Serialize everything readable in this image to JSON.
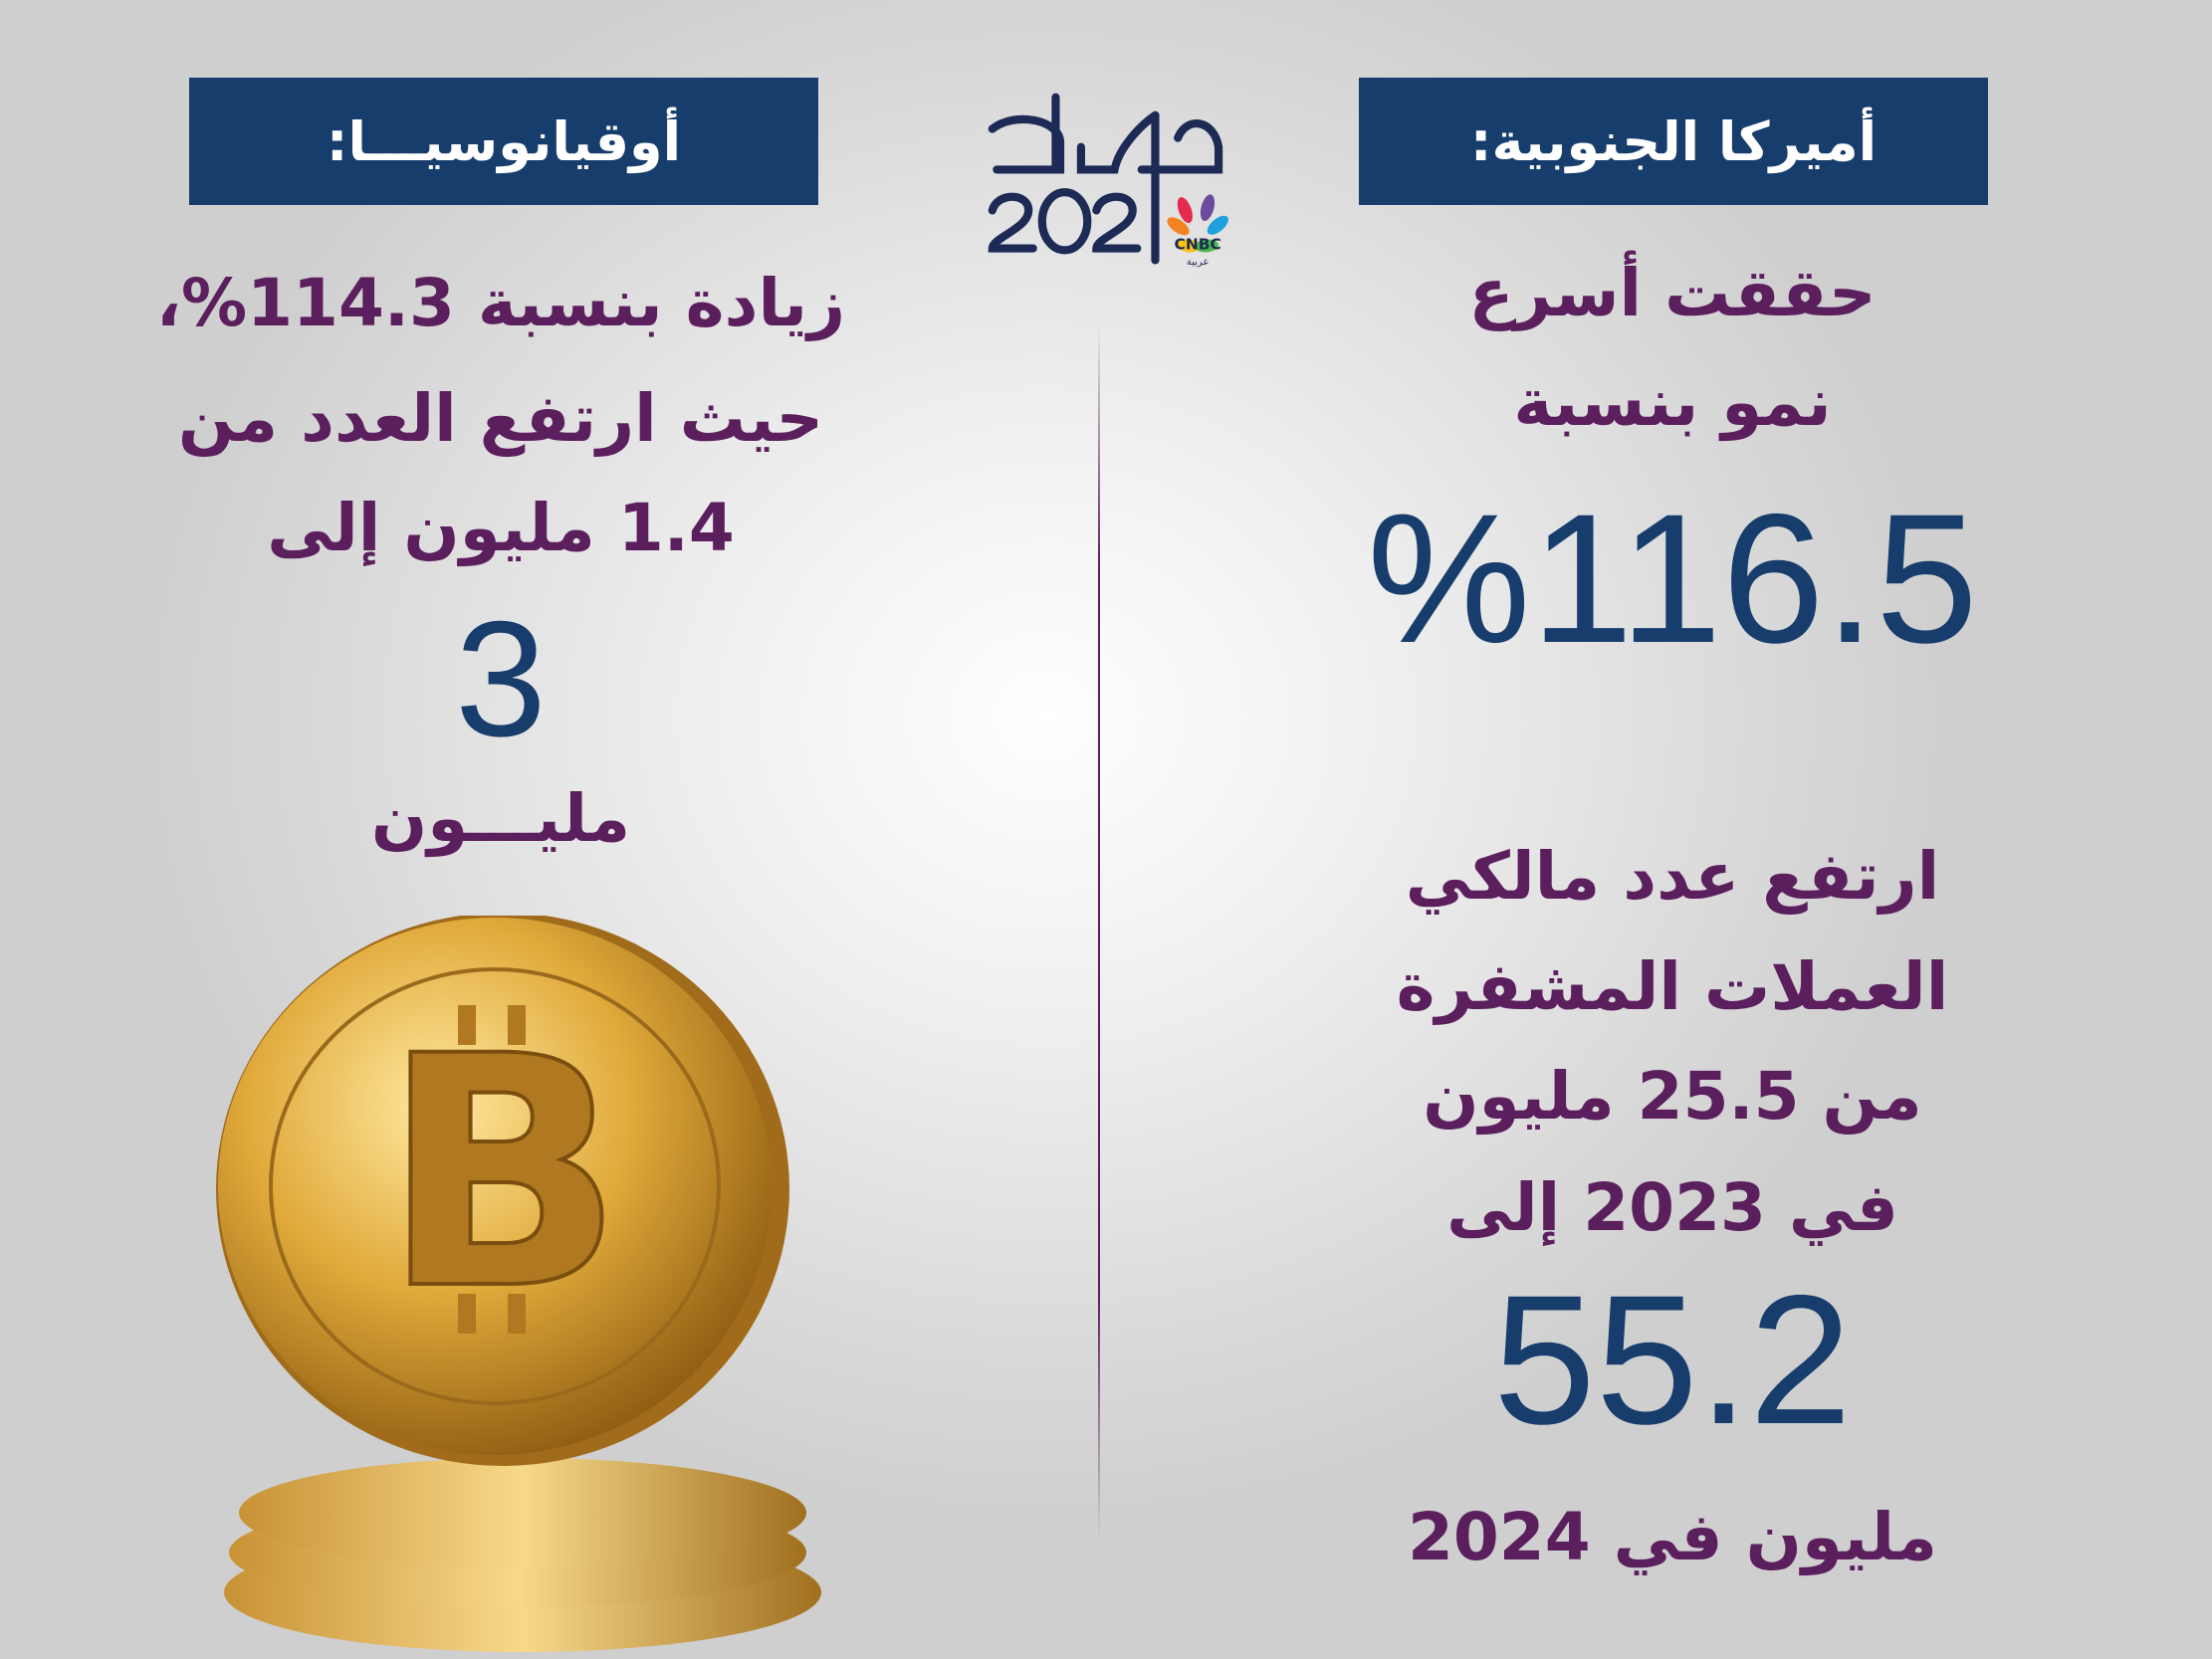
{
  "logo": {
    "text": "حصاد 2024",
    "brand": "CNBC عربية"
  },
  "colors": {
    "header_bg": "#173d6d",
    "text_purple": "#5c1f5e",
    "number_navy": "#173d6d"
  },
  "left": {
    "header": "أوقيانوسيـــا:",
    "lines": [
      "زيادة بنسبة 114.3%،",
      "حيث ارتفع العدد من",
      "1.4 مليون إلى"
    ],
    "big_number": "3",
    "unit": "مليـــون"
  },
  "right": {
    "header": "أميركا الجنوبية:",
    "lines_top": [
      "حققت أسرع",
      "نمو بنسبة"
    ],
    "big_percent": "%116.5",
    "lines_mid": [
      "ارتفع عدد مالكي",
      "العملات المشفرة",
      "من 25.5 مليون",
      "في 2023 إلى"
    ],
    "big_number": "55.2",
    "footer": "مليون في 2024"
  },
  "image": {
    "icon": "bitcoin-coin-stack"
  }
}
